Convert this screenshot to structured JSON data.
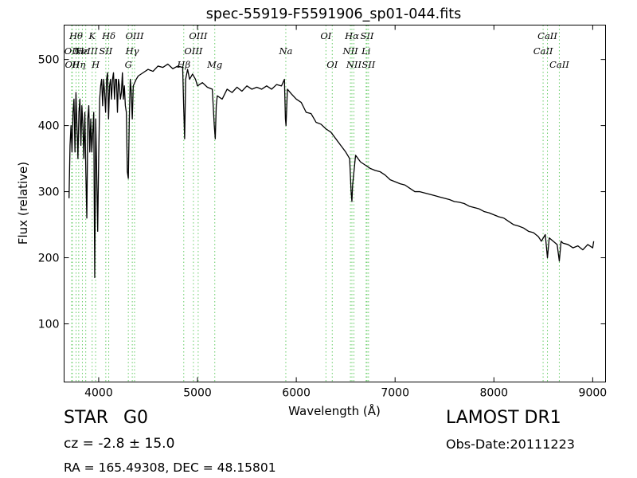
{
  "chart_data": {
    "type": "line",
    "title": "spec-55919-F5591906_sp01-044.fits",
    "xlabel": "Wavelength (Å)",
    "ylabel": "Flux (relative)",
    "xlim": [
      3650,
      9130
    ],
    "ylim": [
      12,
      552
    ],
    "xticks": [
      4000,
      5000,
      6000,
      7000,
      8000,
      9000
    ],
    "yticks": [
      100,
      200,
      300,
      400,
      500
    ],
    "grid": false,
    "series": [
      {
        "color": "#000000",
        "points": [
          [
            3700,
            290
          ],
          [
            3710,
            370
          ],
          [
            3720,
            400
          ],
          [
            3730,
            360
          ],
          [
            3740,
            420
          ],
          [
            3750,
            440
          ],
          [
            3760,
            360
          ],
          [
            3770,
            450
          ],
          [
            3780,
            400
          ],
          [
            3790,
            350
          ],
          [
            3800,
            420
          ],
          [
            3810,
            440
          ],
          [
            3820,
            370
          ],
          [
            3830,
            430
          ],
          [
            3840,
            400
          ],
          [
            3850,
            350
          ],
          [
            3860,
            420
          ],
          [
            3870,
            330
          ],
          [
            3880,
            260
          ],
          [
            3890,
            410
          ],
          [
            3900,
            430
          ],
          [
            3910,
            360
          ],
          [
            3920,
            410
          ],
          [
            3930,
            360
          ],
          [
            3940,
            390
          ],
          [
            3950,
            420
          ],
          [
            3960,
            170
          ],
          [
            3970,
            410
          ],
          [
            3980,
            330
          ],
          [
            3990,
            240
          ],
          [
            4000,
            350
          ],
          [
            4010,
            440
          ],
          [
            4020,
            460
          ],
          [
            4030,
            470
          ],
          [
            4040,
            430
          ],
          [
            4050,
            470
          ],
          [
            4060,
            450
          ],
          [
            4070,
            420
          ],
          [
            4080,
            470
          ],
          [
            4090,
            480
          ],
          [
            4100,
            410
          ],
          [
            4110,
            460
          ],
          [
            4120,
            470
          ],
          [
            4130,
            440
          ],
          [
            4140,
            470
          ],
          [
            4150,
            480
          ],
          [
            4160,
            440
          ],
          [
            4170,
            470
          ],
          [
            4180,
            470
          ],
          [
            4190,
            420
          ],
          [
            4200,
            470
          ],
          [
            4210,
            460
          ],
          [
            4220,
            440
          ],
          [
            4230,
            450
          ],
          [
            4240,
            480
          ],
          [
            4250,
            440
          ],
          [
            4260,
            460
          ],
          [
            4270,
            430
          ],
          [
            4280,
            420
          ],
          [
            4290,
            330
          ],
          [
            4300,
            320
          ],
          [
            4310,
            410
          ],
          [
            4320,
            470
          ],
          [
            4330,
            450
          ],
          [
            4340,
            410
          ],
          [
            4350,
            460
          ],
          [
            4380,
            470
          ],
          [
            4400,
            475
          ],
          [
            4450,
            480
          ],
          [
            4500,
            485
          ],
          [
            4550,
            482
          ],
          [
            4600,
            490
          ],
          [
            4650,
            488
          ],
          [
            4700,
            493
          ],
          [
            4750,
            486
          ],
          [
            4800,
            490
          ],
          [
            4850,
            488
          ],
          [
            4860,
            430
          ],
          [
            4870,
            380
          ],
          [
            4880,
            470
          ],
          [
            4900,
            485
          ],
          [
            4920,
            470
          ],
          [
            4950,
            478
          ],
          [
            4980,
            470
          ],
          [
            5000,
            460
          ],
          [
            5050,
            465
          ],
          [
            5100,
            458
          ],
          [
            5150,
            455
          ],
          [
            5170,
            400
          ],
          [
            5180,
            380
          ],
          [
            5190,
            430
          ],
          [
            5200,
            445
          ],
          [
            5250,
            440
          ],
          [
            5300,
            455
          ],
          [
            5350,
            450
          ],
          [
            5400,
            458
          ],
          [
            5450,
            452
          ],
          [
            5500,
            460
          ],
          [
            5550,
            455
          ],
          [
            5600,
            458
          ],
          [
            5650,
            455
          ],
          [
            5700,
            460
          ],
          [
            5750,
            455
          ],
          [
            5800,
            462
          ],
          [
            5850,
            460
          ],
          [
            5880,
            470
          ],
          [
            5890,
            410
          ],
          [
            5896,
            400
          ],
          [
            5910,
            455
          ],
          [
            5950,
            448
          ],
          [
            6000,
            440
          ],
          [
            6050,
            435
          ],
          [
            6100,
            420
          ],
          [
            6150,
            418
          ],
          [
            6200,
            405
          ],
          [
            6250,
            402
          ],
          [
            6300,
            395
          ],
          [
            6350,
            390
          ],
          [
            6400,
            380
          ],
          [
            6450,
            370
          ],
          [
            6500,
            360
          ],
          [
            6540,
            350
          ],
          [
            6555,
            300
          ],
          [
            6563,
            285
          ],
          [
            6570,
            310
          ],
          [
            6600,
            355
          ],
          [
            6650,
            345
          ],
          [
            6700,
            340
          ],
          [
            6750,
            335
          ],
          [
            6800,
            332
          ],
          [
            6850,
            330
          ],
          [
            6900,
            325
          ],
          [
            6950,
            318
          ],
          [
            7000,
            315
          ],
          [
            7050,
            312
          ],
          [
            7100,
            310
          ],
          [
            7150,
            305
          ],
          [
            7200,
            300
          ],
          [
            7250,
            300
          ],
          [
            7300,
            298
          ],
          [
            7350,
            296
          ],
          [
            7400,
            294
          ],
          [
            7450,
            292
          ],
          [
            7500,
            290
          ],
          [
            7550,
            288
          ],
          [
            7600,
            285
          ],
          [
            7650,
            284
          ],
          [
            7700,
            282
          ],
          [
            7750,
            278
          ],
          [
            7800,
            276
          ],
          [
            7850,
            274
          ],
          [
            7900,
            270
          ],
          [
            7950,
            268
          ],
          [
            8000,
            265
          ],
          [
            8050,
            262
          ],
          [
            8100,
            260
          ],
          [
            8150,
            255
          ],
          [
            8200,
            250
          ],
          [
            8250,
            248
          ],
          [
            8300,
            245
          ],
          [
            8350,
            240
          ],
          [
            8400,
            238
          ],
          [
            8450,
            232
          ],
          [
            8480,
            225
          ],
          [
            8500,
            230
          ],
          [
            8520,
            235
          ],
          [
            8542,
            200
          ],
          [
            8560,
            230
          ],
          [
            8600,
            225
          ],
          [
            8640,
            220
          ],
          [
            8662,
            195
          ],
          [
            8680,
            225
          ],
          [
            8700,
            222
          ],
          [
            8750,
            220
          ],
          [
            8800,
            215
          ],
          [
            8850,
            218
          ],
          [
            8900,
            212
          ],
          [
            8950,
            220
          ],
          [
            9000,
            215
          ],
          [
            9010,
            225
          ]
        ]
      }
    ],
    "line_marker_color": "#66cc66",
    "line_markers": [
      {
        "wave": 3727,
        "label": "OII",
        "row": 2
      },
      {
        "wave": 3733,
        "label": "OII",
        "row": 3
      },
      {
        "wave": 3771,
        "label": "Hθ",
        "row": 1
      },
      {
        "wave": 3798,
        "label": "Hη",
        "row": 3
      },
      {
        "wave": 3835,
        "label": "Hε",
        "row": 2
      },
      {
        "wave": 3869,
        "label": "NeIII",
        "row": 2
      },
      {
        "wave": 3934,
        "label": "K",
        "row": 1
      },
      {
        "wave": 3969,
        "label": "H",
        "row": 3
      },
      {
        "wave": 4072,
        "label": "SII",
        "row": 2
      },
      {
        "wave": 4102,
        "label": "Hδ",
        "row": 1
      },
      {
        "wave": 4300,
        "label": "G",
        "row": 3
      },
      {
        "wave": 4340,
        "label": "Hγ",
        "row": 2
      },
      {
        "wave": 4363,
        "label": "OIII",
        "row": 1
      },
      {
        "wave": 4861,
        "label": "Hβ",
        "row": 3
      },
      {
        "wave": 4959,
        "label": "OIII",
        "row": 2
      },
      {
        "wave": 5007,
        "label": "OIII",
        "row": 1
      },
      {
        "wave": 5175,
        "label": "Mg",
        "row": 3
      },
      {
        "wave": 5894,
        "label": "Na",
        "row": 2
      },
      {
        "wave": 6300,
        "label": "OI",
        "row": 1
      },
      {
        "wave": 6364,
        "label": "OI",
        "row": 3
      },
      {
        "wave": 6548,
        "label": "NII",
        "row": 2
      },
      {
        "wave": 6563,
        "label": "Hα",
        "row": 1
      },
      {
        "wave": 6583,
        "label": "NII",
        "row": 3
      },
      {
        "wave": 6707,
        "label": "Li",
        "row": 2
      },
      {
        "wave": 6716,
        "label": "SII",
        "row": 1
      },
      {
        "wave": 6731,
        "label": "SII",
        "row": 3
      },
      {
        "wave": 8498,
        "label": "CaII",
        "row": 2
      },
      {
        "wave": 8542,
        "label": "CaII",
        "row": 1
      },
      {
        "wave": 8662,
        "label": "CaII",
        "row": 3
      }
    ]
  },
  "info": {
    "class": "STAR",
    "subclass": "G0",
    "survey": "LAMOST DR1",
    "cz": "cz = -2.8 ± 15.0",
    "obs_date": "Obs-Date:20111223",
    "radec": "RA = 165.49308, DEC = 48.15801"
  }
}
